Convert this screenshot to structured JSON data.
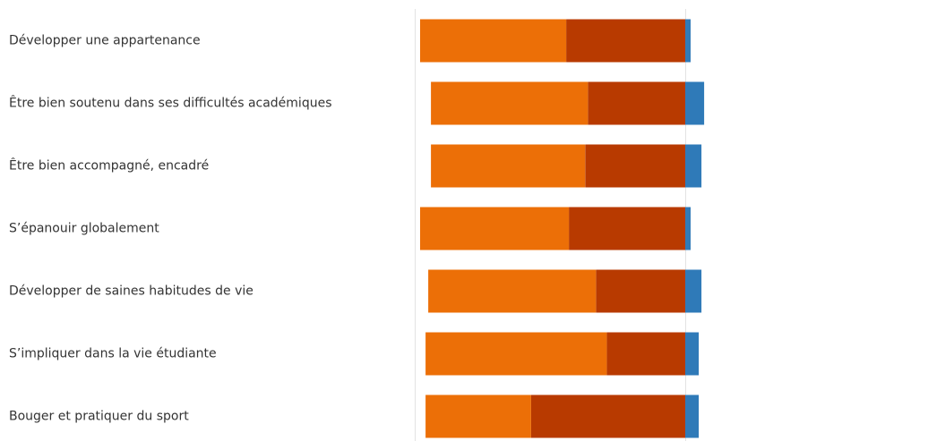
{
  "chart_data": {
    "type": "bar",
    "orientation": "horizontal",
    "stacked": "diverging",
    "categories": [
      "Développer une appartenance",
      "Être bien soutenu dans ses difficultés académiques",
      "Être bien accompagné, encadré",
      "S’épanouir globalement",
      "Développer de saines habitudes de vie",
      "S’impliquer dans la vie étudiante",
      "Bouger et pratiquer du sport"
    ],
    "series": [
      {
        "color": "#b83a00",
        "side": "negative",
        "values": [
          -44,
          -36,
          -37,
          -43,
          -33,
          -29,
          -57
        ]
      },
      {
        "color": "#ec6f07",
        "side": "negative",
        "values": [
          -54,
          -58,
          -57,
          -55,
          -62,
          -67,
          -39
        ]
      },
      {
        "color": "#2f7ab8",
        "side": "positive",
        "values": [
          2,
          7,
          6,
          2,
          6,
          5,
          5
        ]
      }
    ],
    "xlim": [
      -100,
      10
    ],
    "grid": true,
    "legend": "none"
  }
}
